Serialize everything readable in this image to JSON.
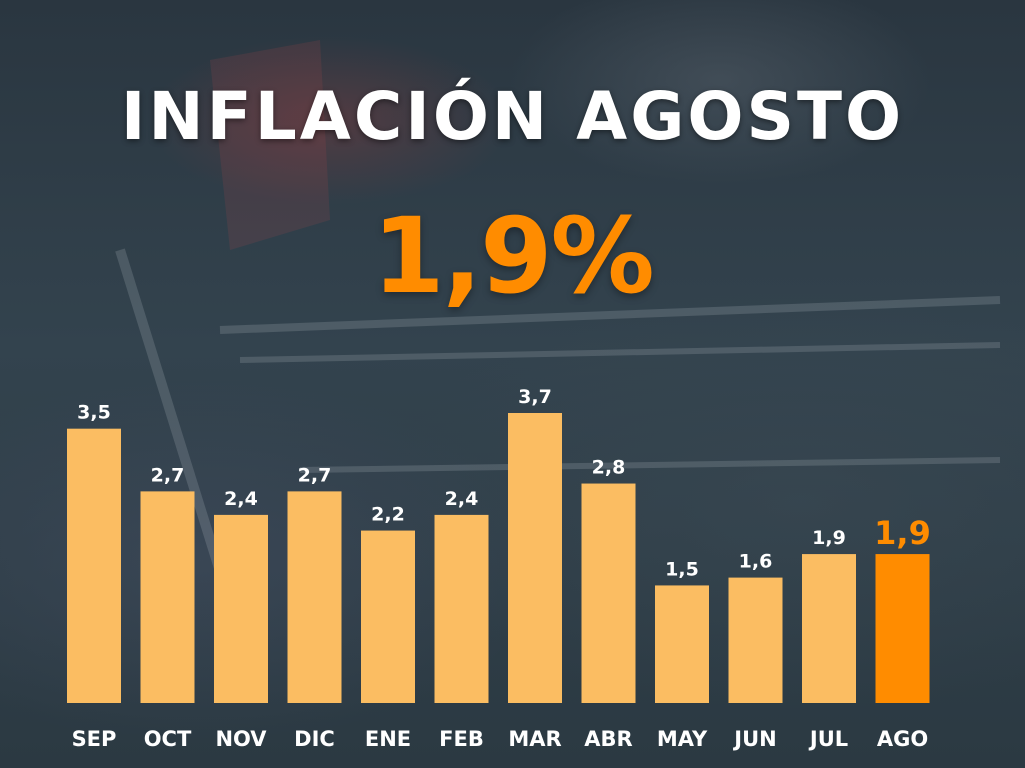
{
  "title": "INFLACIÓN AGOSTO",
  "headline_value": "1,9%",
  "colors": {
    "bar": "#fbbd62",
    "highlight": "#ff8c00",
    "text": "#ffffff",
    "background": "#2f3d47"
  },
  "chart_data": {
    "type": "bar",
    "categories": [
      "SEP",
      "OCT",
      "NOV",
      "DIC",
      "ENE",
      "FEB",
      "MAR",
      "ABR",
      "MAY",
      "JUN",
      "JUL",
      "AGO"
    ],
    "values": [
      3.5,
      2.7,
      2.4,
      2.7,
      2.2,
      2.4,
      3.7,
      2.8,
      1.5,
      1.6,
      1.9,
      1.9
    ],
    "labels": [
      "3,5",
      "2,7",
      "2,4",
      "2,7",
      "2,2",
      "2,4",
      "3,7",
      "2,8",
      "1,5",
      "1,6",
      "1,9",
      "1,9"
    ],
    "highlight_category": "AGO",
    "title": "",
    "xlabel": "",
    "ylabel": "",
    "ylim": [
      0,
      3.7
    ],
    "grid": false,
    "legend": "none"
  }
}
